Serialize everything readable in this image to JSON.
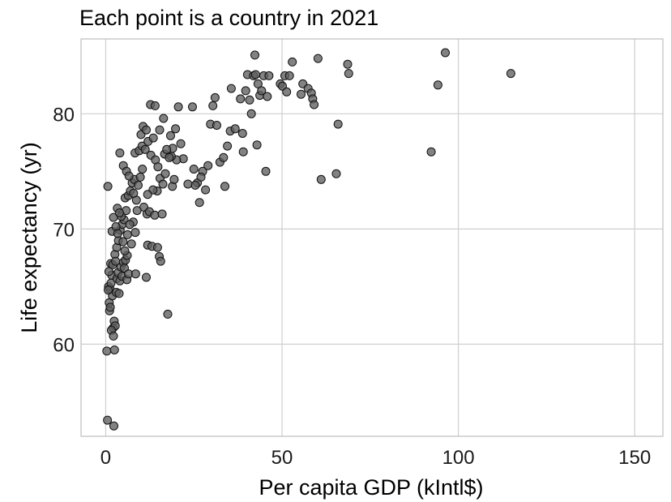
{
  "chart_data": {
    "type": "scatter",
    "title": "Each point is a country in 2021",
    "xlabel": "Per capita GDP (kIntl$)",
    "ylabel": "Life expectancy (yr)",
    "xlim": [
      -7,
      158
    ],
    "ylim": [
      52,
      86.5
    ],
    "xticks": [
      0,
      50,
      100,
      150
    ],
    "yticks": [
      60,
      70,
      80
    ],
    "xtick_labels": [
      "0",
      "50",
      "100",
      "150"
    ],
    "ytick_labels": [
      "60",
      "70",
      "80"
    ],
    "grid": true,
    "legend": "none",
    "point_color": "#5f5f5f",
    "edge_color": "#111111",
    "background": "#ffffff",
    "grid_color": "#cfcfcf",
    "points": [
      [
        0.5,
        53.4
      ],
      [
        2.3,
        52.9
      ],
      [
        0.3,
        59.4
      ],
      [
        2.5,
        59.5
      ],
      [
        17.6,
        62.6
      ],
      [
        0.8,
        65.0
      ],
      [
        1.0,
        63.6
      ],
      [
        1.2,
        64.8
      ],
      [
        1.5,
        65.3
      ],
      [
        1.7,
        66.0
      ],
      [
        1.9,
        64.2
      ],
      [
        2.1,
        61.4
      ],
      [
        2.4,
        62.0
      ],
      [
        2.7,
        61.6
      ],
      [
        3.0,
        64.5
      ],
      [
        3.2,
        65.7
      ],
      [
        3.5,
        66.2
      ],
      [
        3.8,
        64.4
      ],
      [
        4.0,
        65.5
      ],
      [
        4.3,
        66.7
      ],
      [
        4.6,
        65.9
      ],
      [
        5.0,
        67.1
      ],
      [
        5.3,
        66.6
      ],
      [
        5.6,
        67.3
      ],
      [
        6.0,
        65.6
      ],
      [
        6.5,
        66.1
      ],
      [
        0.9,
        66.3
      ],
      [
        1.4,
        67.0
      ],
      [
        2.0,
        66.9
      ],
      [
        2.6,
        67.8
      ],
      [
        3.1,
        68.4
      ],
      [
        3.6,
        69.0
      ],
      [
        4.1,
        69.9
      ],
      [
        4.7,
        70.4
      ],
      [
        5.2,
        70.8
      ],
      [
        5.8,
        71.6
      ],
      [
        6.2,
        69.5
      ],
      [
        1.8,
        69.8
      ],
      [
        2.9,
        70.2
      ],
      [
        4.4,
        71.1
      ],
      [
        2.2,
        71.0
      ],
      [
        3.3,
        71.8
      ],
      [
        3.9,
        71.4
      ],
      [
        5.5,
        72.7
      ],
      [
        6.4,
        72.9
      ],
      [
        7.0,
        73.3
      ],
      [
        7.5,
        74.0
      ],
      [
        8.1,
        74.3
      ],
      [
        8.7,
        72.5
      ],
      [
        9.2,
        73.8
      ],
      [
        9.8,
        74.5
      ],
      [
        10.4,
        75.2
      ],
      [
        0.6,
        73.7
      ],
      [
        4.0,
        76.6
      ],
      [
        5.0,
        75.5
      ],
      [
        5.9,
        75.0
      ],
      [
        6.6,
        74.6
      ],
      [
        7.9,
        73.1
      ],
      [
        8.3,
        76.6
      ],
      [
        9.5,
        76.8
      ],
      [
        10.3,
        77.2
      ],
      [
        11.2,
        76.9
      ],
      [
        12.0,
        77.6
      ],
      [
        12.8,
        76.4
      ],
      [
        13.5,
        77.9
      ],
      [
        14.1,
        76.0
      ],
      [
        14.8,
        75.4
      ],
      [
        15.4,
        74.4
      ],
      [
        16.2,
        73.9
      ],
      [
        16.9,
        74.8
      ],
      [
        10.0,
        78.2
      ],
      [
        10.6,
        78.9
      ],
      [
        11.5,
        78.6
      ],
      [
        12.7,
        80.8
      ],
      [
        14.0,
        80.7
      ],
      [
        15.3,
        78.6
      ],
      [
        16.4,
        79.6
      ],
      [
        18.4,
        78.1
      ],
      [
        19.8,
        78.7
      ],
      [
        20.6,
        80.6
      ],
      [
        21.3,
        77.4
      ],
      [
        22.0,
        76.1
      ],
      [
        20.1,
        76.0
      ],
      [
        19.0,
        77.0
      ],
      [
        18.6,
        76.3
      ],
      [
        14.6,
        73.3
      ],
      [
        13.4,
        73.4
      ],
      [
        11.9,
        73.0
      ],
      [
        10.8,
        71.9
      ],
      [
        11.7,
        71.3
      ],
      [
        12.4,
        71.5
      ],
      [
        13.9,
        71.2
      ],
      [
        16.0,
        71.3
      ],
      [
        8.9,
        71.6
      ],
      [
        7.8,
        70.6
      ],
      [
        6.8,
        70.4
      ],
      [
        7.3,
        68.7
      ],
      [
        8.4,
        69.7
      ],
      [
        11.9,
        68.6
      ],
      [
        13.1,
        68.5
      ],
      [
        14.7,
        68.4
      ],
      [
        15.2,
        67.6
      ],
      [
        15.6,
        67.2
      ],
      [
        6.1,
        67.7
      ],
      [
        8.5,
        66.1
      ],
      [
        11.5,
        65.8
      ],
      [
        5.4,
        68.1
      ],
      [
        4.9,
        68.9
      ],
      [
        3.4,
        69.6
      ],
      [
        2.8,
        67.2
      ],
      [
        1.1,
        62.9
      ],
      [
        1.6,
        61.2
      ],
      [
        2.2,
        60.7
      ],
      [
        1.3,
        63.2
      ],
      [
        0.7,
        64.7
      ],
      [
        16.7,
        76.5
      ],
      [
        17.3,
        76.9
      ],
      [
        18.0,
        76.2
      ],
      [
        18.9,
        73.7
      ],
      [
        19.4,
        74.3
      ],
      [
        24.6,
        80.6
      ],
      [
        25.0,
        75.2
      ],
      [
        26.0,
        74.0
      ],
      [
        26.6,
        72.3
      ],
      [
        27.5,
        75.0
      ],
      [
        28.3,
        73.4
      ],
      [
        29.0,
        75.5
      ],
      [
        29.7,
        79.1
      ],
      [
        30.4,
        80.7
      ],
      [
        31.0,
        81.4
      ],
      [
        31.5,
        79.0
      ],
      [
        32.4,
        75.8
      ],
      [
        33.4,
        76.2
      ],
      [
        33.8,
        73.7
      ],
      [
        34.5,
        77.2
      ],
      [
        35.3,
        78.5
      ],
      [
        35.6,
        82.2
      ],
      [
        36.7,
        78.7
      ],
      [
        38.2,
        81.3
      ],
      [
        38.8,
        78.3
      ],
      [
        39.0,
        76.7
      ],
      [
        39.7,
        82.0
      ],
      [
        40.2,
        83.4
      ],
      [
        40.8,
        81.2
      ],
      [
        41.3,
        80.0
      ],
      [
        41.9,
        83.3
      ],
      [
        42.5,
        83.4
      ],
      [
        42.9,
        77.3
      ],
      [
        43.2,
        82.6
      ],
      [
        43.7,
        81.6
      ],
      [
        44.2,
        82.0
      ],
      [
        44.8,
        83.3
      ],
      [
        45.4,
        75.0
      ],
      [
        45.8,
        81.5
      ],
      [
        46.3,
        83.3
      ],
      [
        42.3,
        85.1
      ],
      [
        49.5,
        82.6
      ],
      [
        50.1,
        82.4
      ],
      [
        50.8,
        83.3
      ],
      [
        51.3,
        81.9
      ],
      [
        52.1,
        83.3
      ],
      [
        52.9,
        84.5
      ],
      [
        55.4,
        81.7
      ],
      [
        55.9,
        82.6
      ],
      [
        57.4,
        82.2
      ],
      [
        58.3,
        81.8
      ],
      [
        58.7,
        81.3
      ],
      [
        59.1,
        80.8
      ],
      [
        60.2,
        84.8
      ],
      [
        61.1,
        74.3
      ],
      [
        65.4,
        74.8
      ],
      [
        65.9,
        79.1
      ],
      [
        68.6,
        84.3
      ],
      [
        68.9,
        83.5
      ],
      [
        92.3,
        76.7
      ],
      [
        94.2,
        82.5
      ],
      [
        96.3,
        85.3
      ],
      [
        114.9,
        83.5
      ],
      [
        25.4,
        73.8
      ],
      [
        23.3,
        73.9
      ],
      [
        27.0,
        74.5
      ]
    ]
  }
}
